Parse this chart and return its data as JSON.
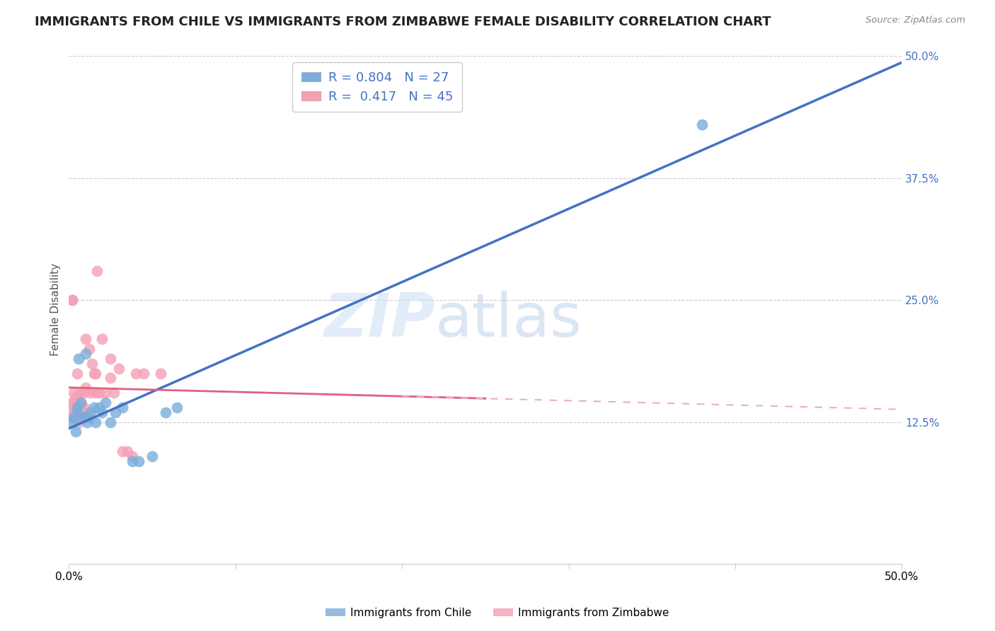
{
  "title": "IMMIGRANTS FROM CHILE VS IMMIGRANTS FROM ZIMBABWE FEMALE DISABILITY CORRELATION CHART",
  "source": "Source: ZipAtlas.com",
  "ylabel": "Female Disability",
  "xlim": [
    0.0,
    0.5
  ],
  "ylim": [
    -0.02,
    0.5
  ],
  "yticks_right": [
    0.125,
    0.25,
    0.375,
    0.5
  ],
  "yticklabels_right": [
    "12.5%",
    "25.0%",
    "37.5%",
    "50.0%"
  ],
  "xtick_positions": [
    0.0,
    0.1,
    0.2,
    0.3,
    0.4,
    0.5
  ],
  "xticklabels": [
    "0.0%",
    "",
    "",
    "",
    "",
    "50.0%"
  ],
  "grid_color": "#cccccc",
  "background_color": "#ffffff",
  "watermark_zip": "ZIP",
  "watermark_atlas": "atlas",
  "chile_color": "#7aaddb",
  "zimbabwe_color": "#f5a0b5",
  "chile_line_color": "#4472c4",
  "zimbabwe_line_color": "#e06080",
  "zimbabwe_dash_color": "#e8b0c0",
  "chile_R": 0.804,
  "chile_N": 27,
  "zimbabwe_R": 0.417,
  "zimbabwe_N": 45,
  "chile_x": [
    0.002,
    0.003,
    0.004,
    0.005,
    0.005,
    0.006,
    0.007,
    0.008,
    0.009,
    0.01,
    0.011,
    0.012,
    0.013,
    0.015,
    0.016,
    0.018,
    0.02,
    0.022,
    0.025,
    0.028,
    0.032,
    0.038,
    0.042,
    0.05,
    0.058,
    0.065,
    0.38
  ],
  "chile_y": [
    0.125,
    0.13,
    0.115,
    0.135,
    0.14,
    0.19,
    0.145,
    0.13,
    0.13,
    0.195,
    0.125,
    0.13,
    0.135,
    0.14,
    0.125,
    0.14,
    0.135,
    0.145,
    0.125,
    0.135,
    0.14,
    0.085,
    0.085,
    0.09,
    0.135,
    0.14,
    0.43
  ],
  "zimbabwe_x": [
    0.001,
    0.002,
    0.002,
    0.002,
    0.003,
    0.003,
    0.003,
    0.004,
    0.004,
    0.005,
    0.005,
    0.005,
    0.006,
    0.006,
    0.007,
    0.007,
    0.008,
    0.009,
    0.009,
    0.01,
    0.01,
    0.011,
    0.012,
    0.013,
    0.014,
    0.015,
    0.016,
    0.016,
    0.017,
    0.018,
    0.02,
    0.022,
    0.025,
    0.025,
    0.027,
    0.03,
    0.032,
    0.035,
    0.038,
    0.04,
    0.045,
    0.055,
    0.002,
    0.003,
    0.005
  ],
  "zimbabwe_y": [
    0.13,
    0.13,
    0.145,
    0.25,
    0.14,
    0.145,
    0.155,
    0.135,
    0.15,
    0.13,
    0.135,
    0.14,
    0.125,
    0.135,
    0.145,
    0.155,
    0.135,
    0.14,
    0.155,
    0.21,
    0.16,
    0.135,
    0.2,
    0.155,
    0.185,
    0.175,
    0.155,
    0.175,
    0.28,
    0.155,
    0.21,
    0.155,
    0.17,
    0.19,
    0.155,
    0.18,
    0.095,
    0.095,
    0.09,
    0.175,
    0.175,
    0.175,
    0.25,
    0.135,
    0.175
  ],
  "title_fontsize": 13,
  "axis_label_fontsize": 11,
  "tick_fontsize": 11,
  "legend_fontsize": 13,
  "watermark_fontsize_zip": 62,
  "watermark_fontsize_atlas": 62
}
